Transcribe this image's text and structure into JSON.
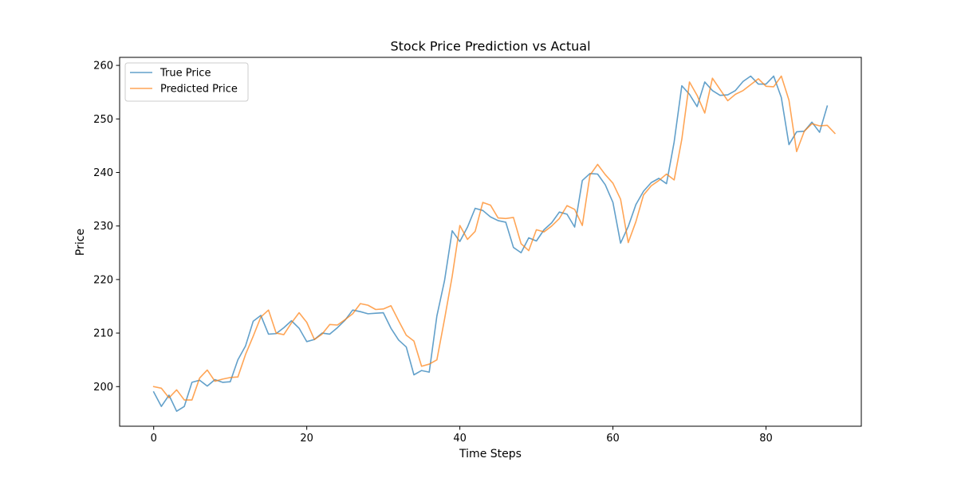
{
  "chart_data": {
    "type": "line",
    "title": "Stock Price Prediction vs Actual",
    "xlabel": "Time Steps",
    "ylabel": "Price",
    "xlim": [
      -4.45,
      92.45
    ],
    "ylim": [
      192.6,
      261.5
    ],
    "xticks": [
      0,
      20,
      40,
      60,
      80
    ],
    "yticks": [
      200,
      210,
      220,
      230,
      240,
      250,
      260
    ],
    "grid": false,
    "legend_position": "upper-left",
    "series": [
      {
        "name": "True Price",
        "color": "#1f77b4",
        "values": [
          199.0,
          196.3,
          198.4,
          195.4,
          196.3,
          200.8,
          201.2,
          200.1,
          201.3,
          200.8,
          200.9,
          205.0,
          207.6,
          212.2,
          213.3,
          209.8,
          209.9,
          211.0,
          212.3,
          210.9,
          208.4,
          208.8,
          210.0,
          209.8,
          211.0,
          212.4,
          214.3,
          214.0,
          213.6,
          213.7,
          213.8,
          210.9,
          208.7,
          207.4,
          202.2,
          203.0,
          202.7,
          213.2,
          219.8,
          229.1,
          227.1,
          229.8,
          233.3,
          232.9,
          231.7,
          231.0,
          230.7,
          226.0,
          225.0,
          227.8,
          227.2,
          229.3,
          230.6,
          232.6,
          232.2,
          229.8,
          238.5,
          239.8,
          239.7,
          237.7,
          234.4,
          226.8,
          229.9,
          234.0,
          236.5,
          238.1,
          238.9,
          237.9,
          245.7,
          256.2,
          254.6,
          252.3,
          256.9,
          255.3,
          254.4,
          254.5,
          255.3,
          257.0,
          258.0,
          256.5,
          256.5,
          258.0,
          254.0,
          245.2,
          247.6,
          247.7,
          249.4,
          247.5,
          252.4
        ]
      },
      {
        "name": "Predicted Price",
        "color": "#ff7f0e",
        "values": [
          200.0,
          199.7,
          197.9,
          199.4,
          197.5,
          197.5,
          201.6,
          203.1,
          201.0,
          201.4,
          201.7,
          201.8,
          206.0,
          209.4,
          213.0,
          214.3,
          210.0,
          209.7,
          211.9,
          213.8,
          212.0,
          208.8,
          209.8,
          211.6,
          211.5,
          212.5,
          213.6,
          215.5,
          215.2,
          214.4,
          214.5,
          215.1,
          212.3,
          209.6,
          208.5,
          203.8,
          204.2,
          205.0,
          212.6,
          220.6,
          230.1,
          227.5,
          229.0,
          234.4,
          233.9,
          231.5,
          231.4,
          231.6,
          226.7,
          225.4,
          229.3,
          228.9,
          230.0,
          231.4,
          233.8,
          233.1,
          230.1,
          239.5,
          241.5,
          239.6,
          238.0,
          235.0,
          226.9,
          230.8,
          235.8,
          237.5,
          238.5,
          239.7,
          238.6,
          246.2,
          256.9,
          254.4,
          251.1,
          257.6,
          255.5,
          253.4,
          254.6,
          255.3,
          256.4,
          257.5,
          256.1,
          256.0,
          258.0,
          253.5,
          243.9,
          247.7,
          249.1,
          248.7,
          248.8,
          247.3
        ]
      }
    ]
  }
}
